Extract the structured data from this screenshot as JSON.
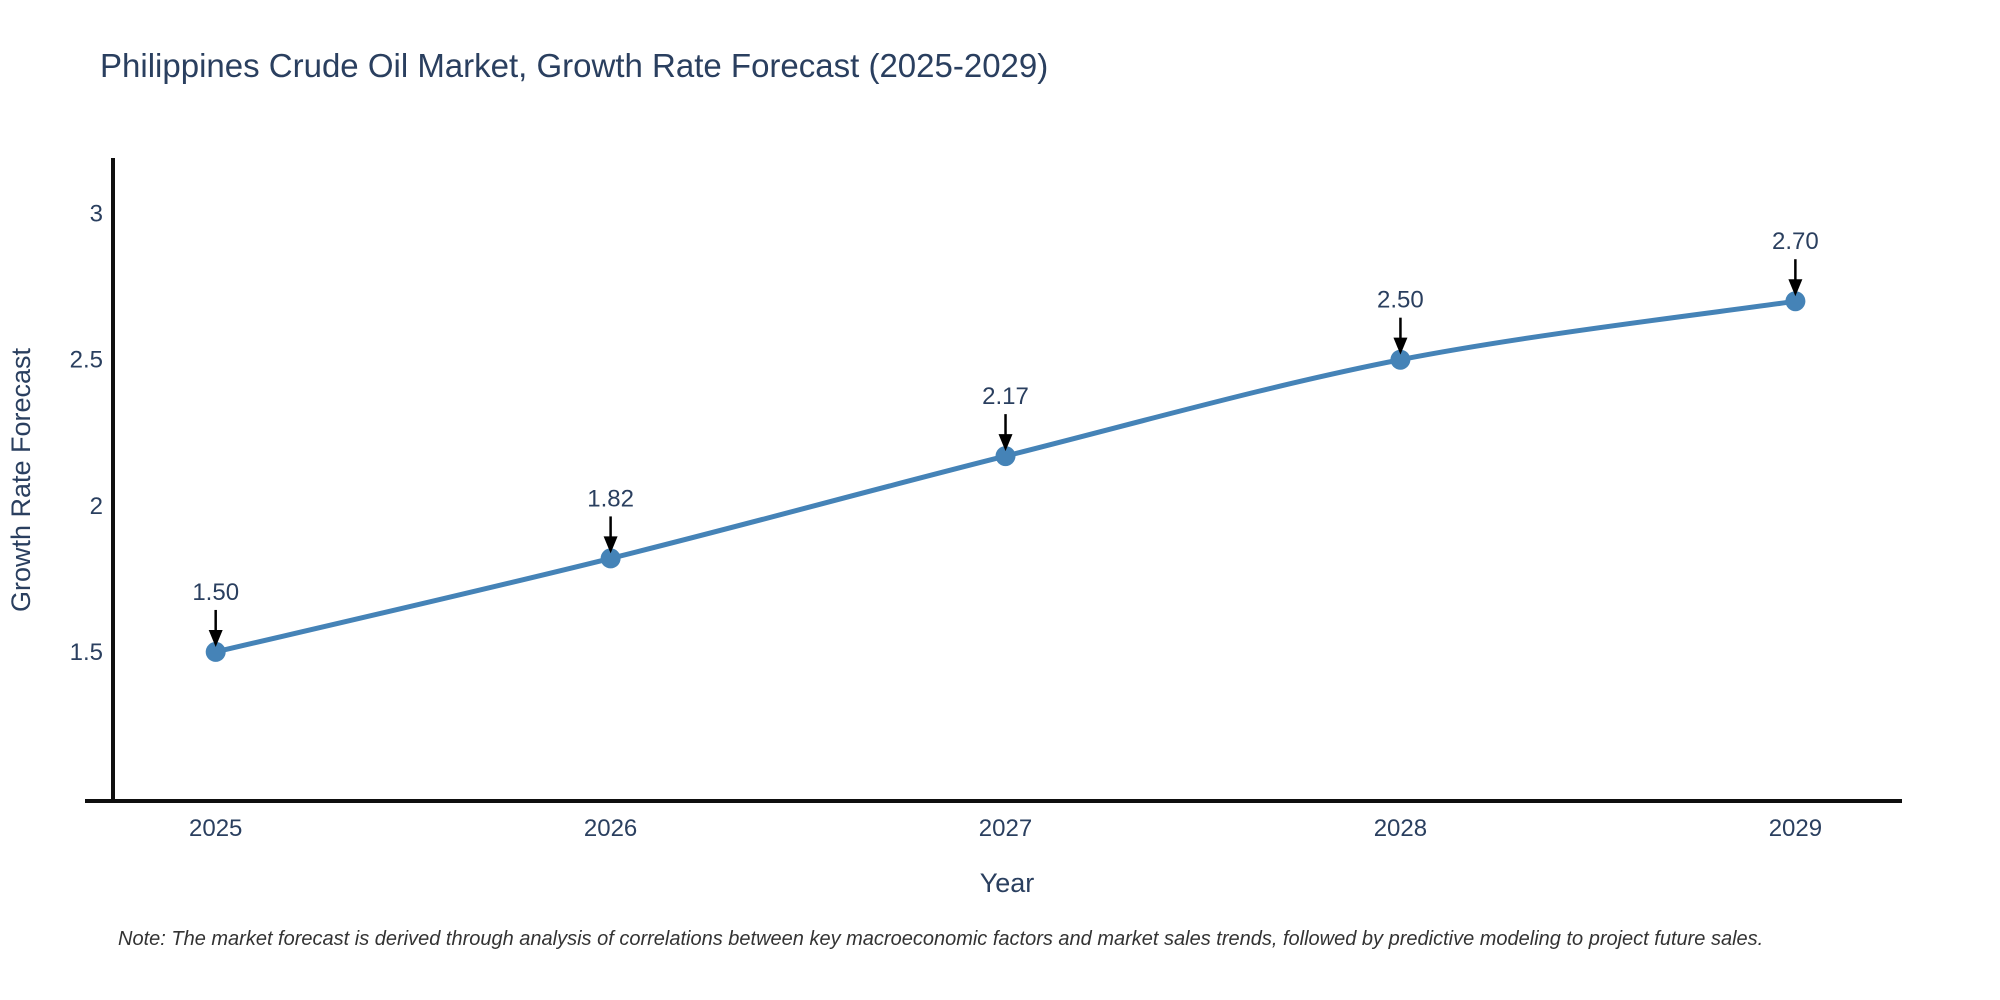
{
  "title": "Philippines Crude Oil Market, Growth Rate Forecast (2025-2029)",
  "note": "Note: The market forecast is derived through analysis of correlations between key macroeconomic factors and market sales trends, followed by predictive modeling to project future sales.",
  "chart_data": {
    "type": "line",
    "title": "Philippines Crude Oil Market, Growth Rate Forecast (2025-2029)",
    "xlabel": "Year",
    "ylabel": "Growth Rate Forecast",
    "x": [
      2025,
      2026,
      2027,
      2028,
      2029
    ],
    "xtick_labels": [
      "2025",
      "2026",
      "2027",
      "2028",
      "2029"
    ],
    "series": [
      {
        "name": "Growth Rate Forecast",
        "values": [
          1.5,
          1.82,
          2.17,
          2.5,
          2.7
        ]
      }
    ],
    "point_labels": [
      "1.50",
      "1.82",
      "2.17",
      "2.50",
      "2.70"
    ],
    "yticks": [
      1.5,
      2,
      2.5,
      3
    ],
    "ytick_labels": [
      "1.5",
      "2",
      "2.5",
      "3"
    ],
    "xlim": [
      2024.74,
      2029.27
    ],
    "ylim": [
      0.99,
      3.19
    ],
    "grid": false,
    "legend_position": "none",
    "line_shape": "spline",
    "annotation_arrows": true,
    "colors": {
      "line": "#4583b7",
      "marker": "#4583b7",
      "axis_line": "#0f0f0f",
      "text": "#2a3f5f",
      "note_text": "#333333",
      "arrow": "#000000",
      "background": "#ffffff"
    }
  }
}
